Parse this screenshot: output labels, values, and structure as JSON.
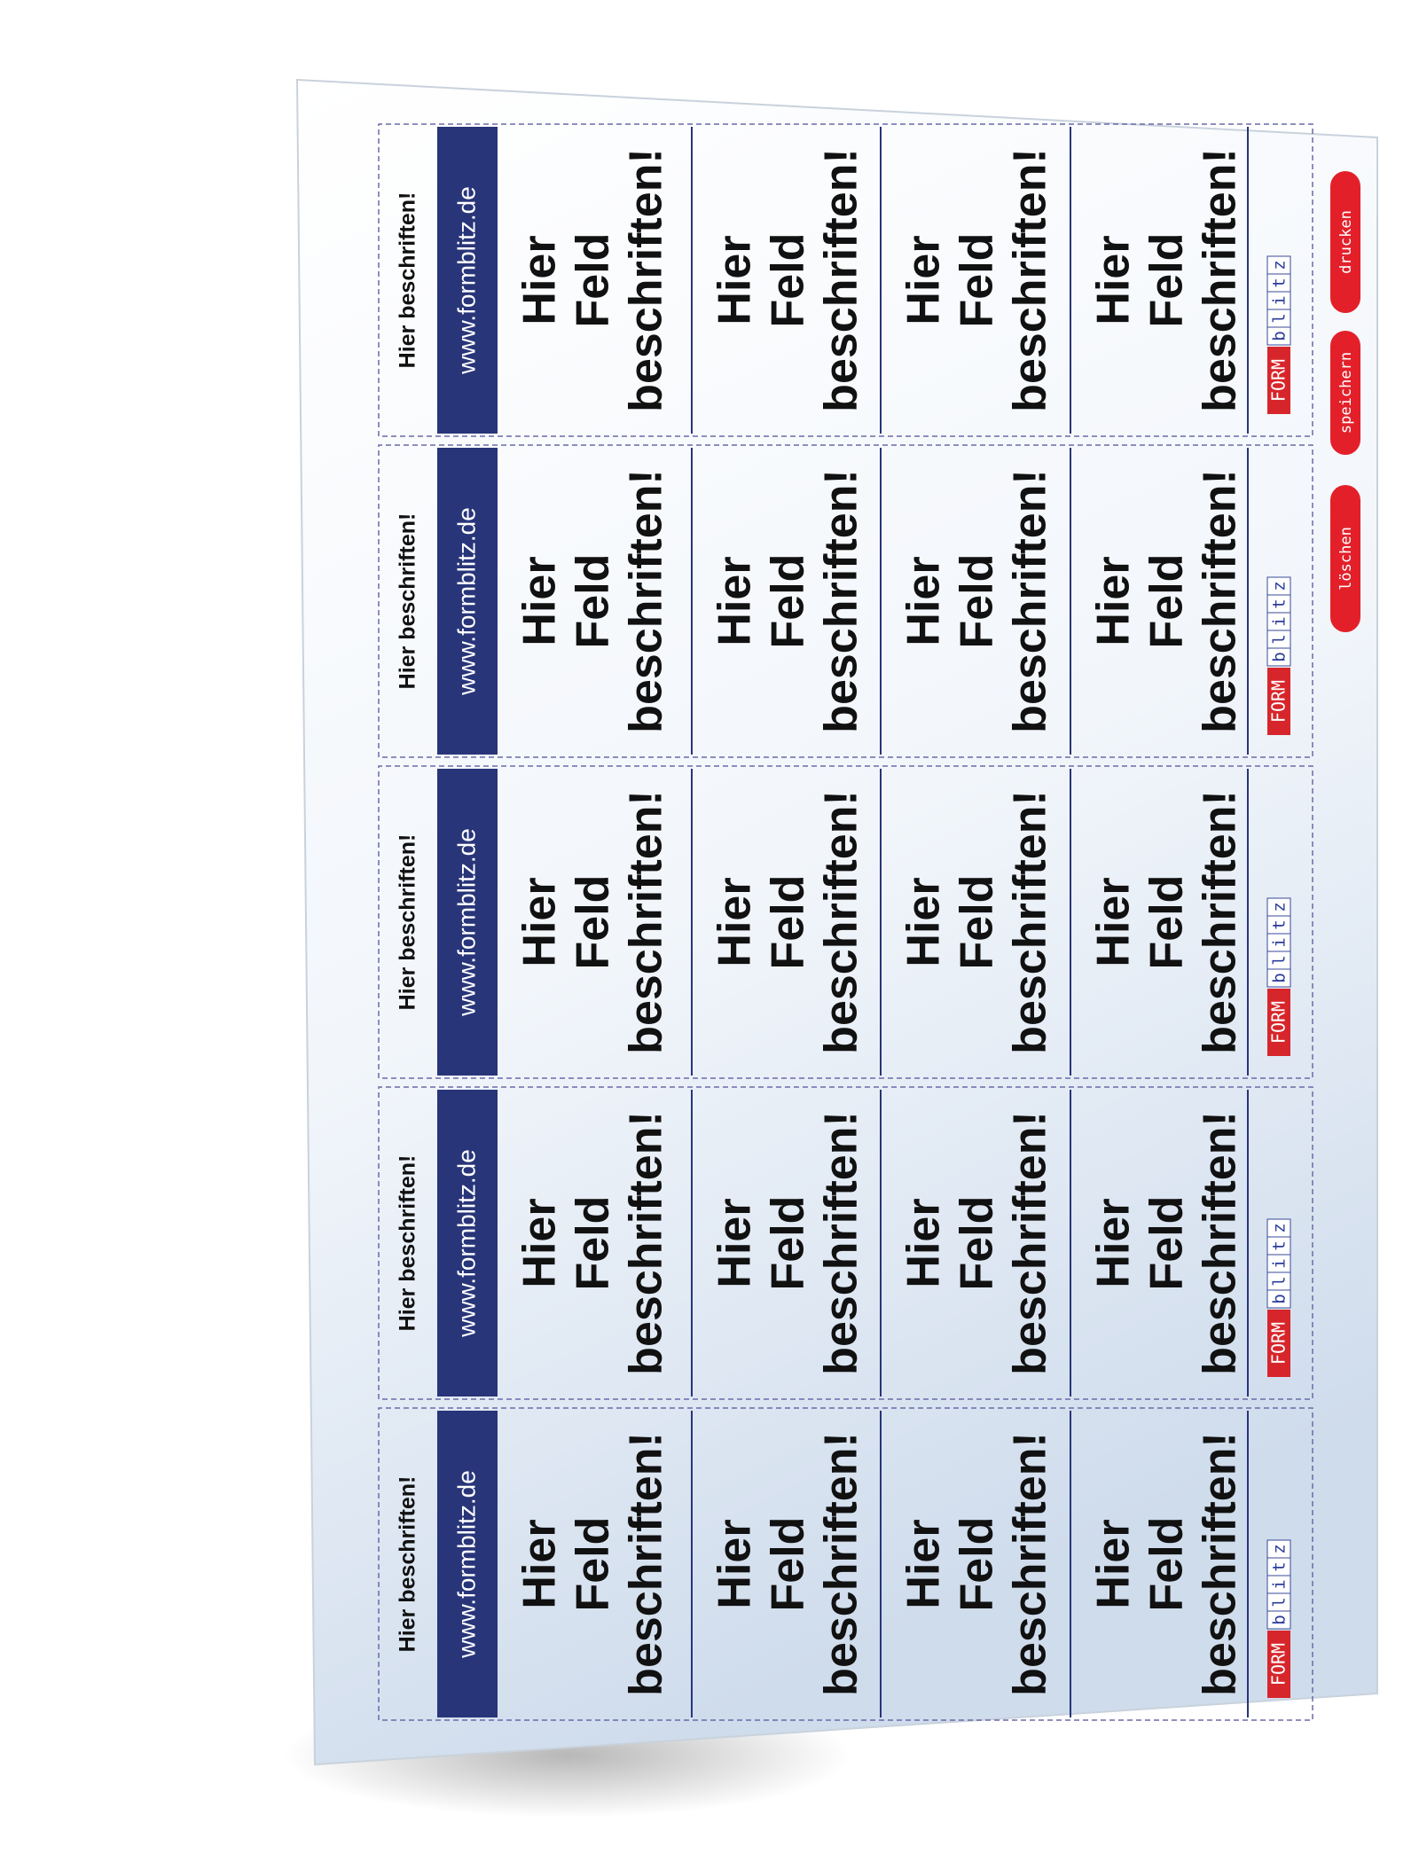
{
  "strips": [
    {
      "header": "Hier beschriften!",
      "url": "www.formblitz.de",
      "fields": [
        {
          "lines": [
            "Hier",
            "Feld",
            "beschriften!"
          ]
        },
        {
          "lines": [
            "Hier",
            "Feld",
            "beschriften!"
          ]
        },
        {
          "lines": [
            "Hier",
            "Feld",
            "beschriften!"
          ]
        },
        {
          "lines": [
            "Hier",
            "Feld",
            "beschriften!"
          ]
        }
      ],
      "logo": {
        "form": "FORM",
        "blitz": [
          "b",
          "l",
          "i",
          "t",
          "z"
        ]
      }
    },
    {
      "header": "Hier beschriften!",
      "url": "www.formblitz.de",
      "fields": [
        {
          "lines": [
            "Hier",
            "Feld",
            "beschriften!"
          ]
        },
        {
          "lines": [
            "Hier",
            "Feld",
            "beschriften!"
          ]
        },
        {
          "lines": [
            "Hier",
            "Feld",
            "beschriften!"
          ]
        },
        {
          "lines": [
            "Hier",
            "Feld",
            "beschriften!"
          ]
        }
      ],
      "logo": {
        "form": "FORM",
        "blitz": [
          "b",
          "l",
          "i",
          "t",
          "z"
        ]
      }
    },
    {
      "header": "Hier beschriften!",
      "url": "www.formblitz.de",
      "fields": [
        {
          "lines": [
            "Hier",
            "Feld",
            "beschriften!"
          ]
        },
        {
          "lines": [
            "Hier",
            "Feld",
            "beschriften!"
          ]
        },
        {
          "lines": [
            "Hier",
            "Feld",
            "beschriften!"
          ]
        },
        {
          "lines": [
            "Hier",
            "Feld",
            "beschriften!"
          ]
        }
      ],
      "logo": {
        "form": "FORM",
        "blitz": [
          "b",
          "l",
          "i",
          "t",
          "z"
        ]
      }
    },
    {
      "header": "Hier beschriften!",
      "url": "www.formblitz.de",
      "fields": [
        {
          "lines": [
            "Hier",
            "Feld",
            "beschriften!"
          ]
        },
        {
          "lines": [
            "Hier",
            "Feld",
            "beschriften!"
          ]
        },
        {
          "lines": [
            "Hier",
            "Feld",
            "beschriften!"
          ]
        },
        {
          "lines": [
            "Hier",
            "Feld",
            "beschriften!"
          ]
        }
      ],
      "logo": {
        "form": "FORM",
        "blitz": [
          "b",
          "l",
          "i",
          "t",
          "z"
        ]
      }
    },
    {
      "header": "Hier beschriften!",
      "url": "www.formblitz.de",
      "fields": [
        {
          "lines": [
            "Hier",
            "Feld",
            "beschriften!"
          ]
        },
        {
          "lines": [
            "Hier",
            "Feld",
            "beschriften!"
          ]
        },
        {
          "lines": [
            "Hier",
            "Feld",
            "beschriften!"
          ]
        },
        {
          "lines": [
            "Hier",
            "Feld",
            "beschriften!"
          ]
        }
      ],
      "logo": {
        "form": "FORM",
        "blitz": [
          "b",
          "l",
          "i",
          "t",
          "z"
        ]
      }
    }
  ],
  "buttons": [
    "drucken",
    "speichern",
    "löschen"
  ]
}
